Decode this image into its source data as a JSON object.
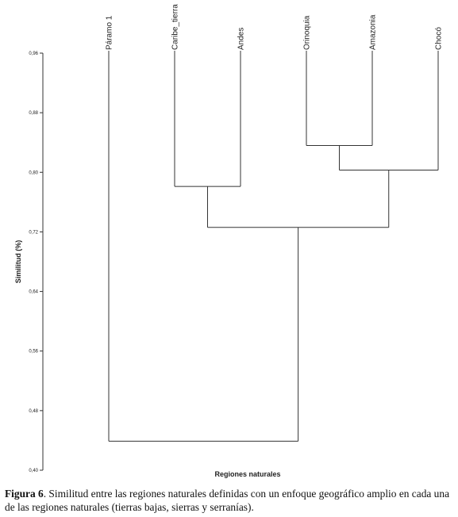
{
  "chart_data": {
    "type": "dendrogram",
    "xlabel": "Regiones naturales",
    "ylabel": "Similitud (%)",
    "ylim": [
      0.4,
      0.96
    ],
    "yticks": [
      0.4,
      0.48,
      0.56,
      0.64,
      0.72,
      0.8,
      0.88,
      0.96
    ],
    "ytick_labels": [
      "0,40",
      "0,48",
      "0,56",
      "0,64",
      "0,72",
      "0,80",
      "0,88",
      "0,96"
    ],
    "leaves": [
      "Páramo 1",
      "Caribe_tierra",
      "Andes",
      "Orinoquia",
      "Amazonia",
      "Chocó"
    ],
    "merges": [
      {
        "left": "Orinoquia",
        "right": "Amazonia",
        "similarity": 0.836,
        "cluster": "C1"
      },
      {
        "left": "C1",
        "right": "Chocó",
        "similarity": 0.803,
        "cluster": "C2"
      },
      {
        "left": "Caribe_tierra",
        "right": "Andes",
        "similarity": 0.781,
        "cluster": "C3"
      },
      {
        "left": "C3",
        "right": "C2",
        "similarity": 0.726,
        "cluster": "C4"
      },
      {
        "left": "Páramo 1",
        "right": "C4",
        "similarity": 0.439,
        "cluster": "C5"
      }
    ],
    "line_color": "#333333"
  },
  "caption": {
    "label": "Figura 6",
    "text": ". Similitud entre las regiones naturales definidas con un enfoque geográfico amplio en cada una de las regiones naturales (tierras bajas, sierras y serranías)."
  }
}
